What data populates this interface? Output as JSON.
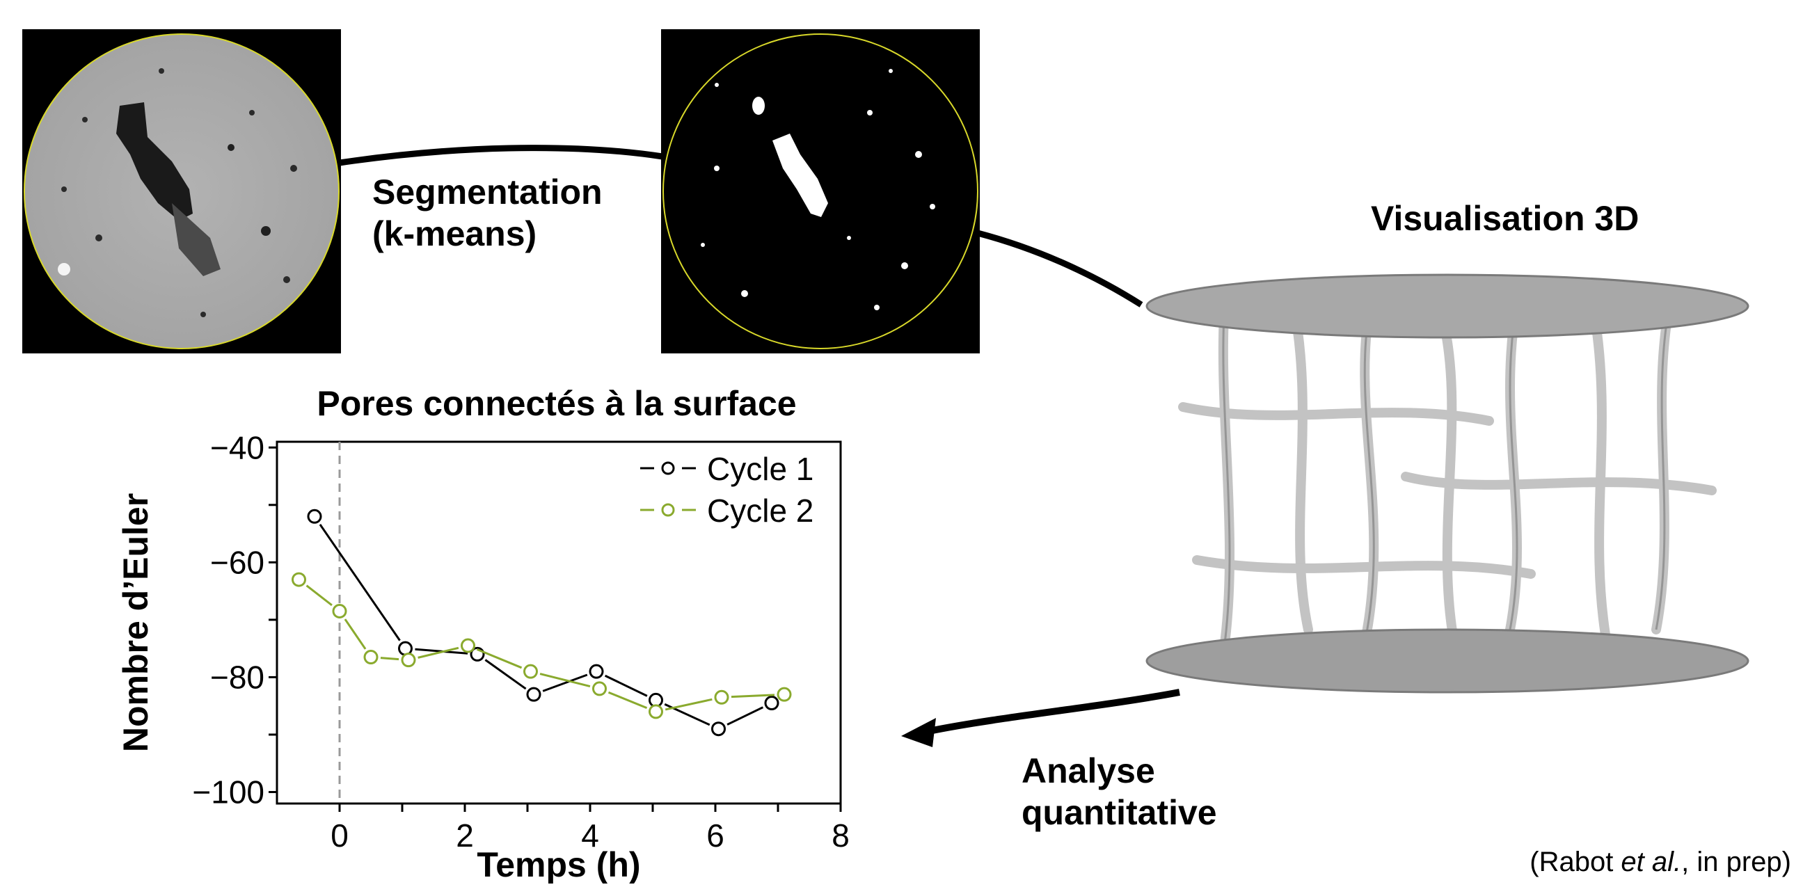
{
  "labels": {
    "segmentation_line1": "Segmentation",
    "segmentation_line2": "(k-means)",
    "visualisation": "Visualisation 3D",
    "analyse_line1": "Analyse",
    "analyse_line2": "quantitative",
    "citation_prefix": "(Rabot ",
    "citation_italic": "et al.",
    "citation_suffix": ", in prep)"
  },
  "colors": {
    "cycle1": "#000000",
    "cycle2": "#8aaa2e",
    "circle_outline": "#d9d92a",
    "zero_line": "#9a9a9a"
  },
  "chart_data": {
    "type": "line",
    "title": "Pores connectés à la surface",
    "xlabel": "Temps (h)",
    "ylabel": "Nombre d’Euler",
    "xlim": [
      -1,
      8
    ],
    "ylim": [
      -102,
      -39
    ],
    "xticks": [
      0,
      2,
      4,
      6,
      8
    ],
    "yticks": [
      -40,
      -60,
      -80,
      -100
    ],
    "ytick_labels": [
      "−40",
      "−60",
      "−80",
      "−100"
    ],
    "legend_position": "top-right",
    "series": [
      {
        "name": "Cycle 1",
        "color": "#000000",
        "x": [
          -0.4,
          1.05,
          2.2,
          3.1,
          4.1,
          5.05,
          6.05,
          6.9
        ],
        "y": [
          -52,
          -75,
          -76,
          -83,
          -79,
          -84,
          -89,
          -84.5
        ]
      },
      {
        "name": "Cycle 2",
        "color": "#8aaa2e",
        "x": [
          -0.65,
          0.0,
          0.5,
          1.1,
          2.05,
          3.05,
          4.15,
          5.05,
          6.1,
          7.1
        ],
        "y": [
          -63,
          -68.5,
          -76.5,
          -77,
          -74.5,
          -79,
          -82,
          -86,
          -83.5,
          -83
        ]
      }
    ],
    "reference_line_x": 0
  }
}
